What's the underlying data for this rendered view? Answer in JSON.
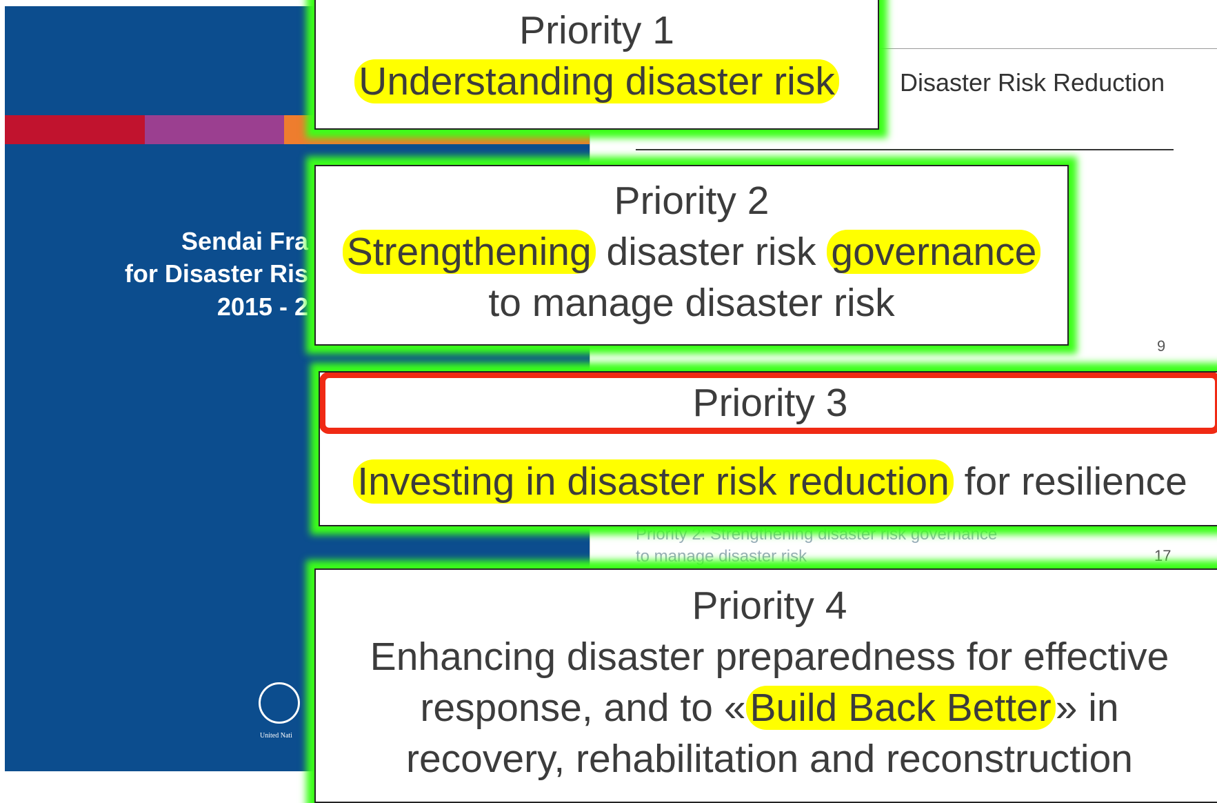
{
  "cover": {
    "lines": [
      "Sendai Fra",
      "for Disaster Ris",
      "2015 - 2"
    ],
    "logo_caption": "United Nati"
  },
  "background_page": {
    "header": "Disaster Risk Reduction",
    "page_numbers": [
      9,
      17
    ],
    "faded_entry": [
      "Priority 2: Strengthening disaster risk governance",
      "to manage disaster risk"
    ]
  },
  "priorities": [
    {
      "heading": "Priority 1",
      "lines": [
        [
          {
            "text": "Understanding disaster risk",
            "highlight": true
          }
        ]
      ]
    },
    {
      "heading": "Priority 2",
      "lines": [
        [
          {
            "text": "Strengthening",
            "highlight": true
          },
          {
            "text": " disaster risk ",
            "highlight": false
          },
          {
            "text": "governance",
            "highlight": true
          }
        ],
        [
          {
            "text": "to manage disaster risk",
            "highlight": false
          }
        ]
      ]
    },
    {
      "heading": "Priority 3",
      "heading_outlined": true,
      "lines": [
        [
          {
            "text": "Investing in disaster risk reduction",
            "highlight": true
          },
          {
            "text": " for resilience",
            "highlight": false
          }
        ]
      ]
    },
    {
      "heading": "Priority 4",
      "lines": [
        [
          {
            "text": "Enhancing disaster preparedness for effective",
            "highlight": false
          }
        ],
        [
          {
            "text": "response, and to «",
            "highlight": false
          },
          {
            "text": "Build Back Better",
            "highlight": true
          },
          {
            "text": "» in",
            "highlight": false
          }
        ],
        [
          {
            "text": "recovery, rehabilitation and reconstruction",
            "highlight": false
          }
        ]
      ]
    }
  ]
}
